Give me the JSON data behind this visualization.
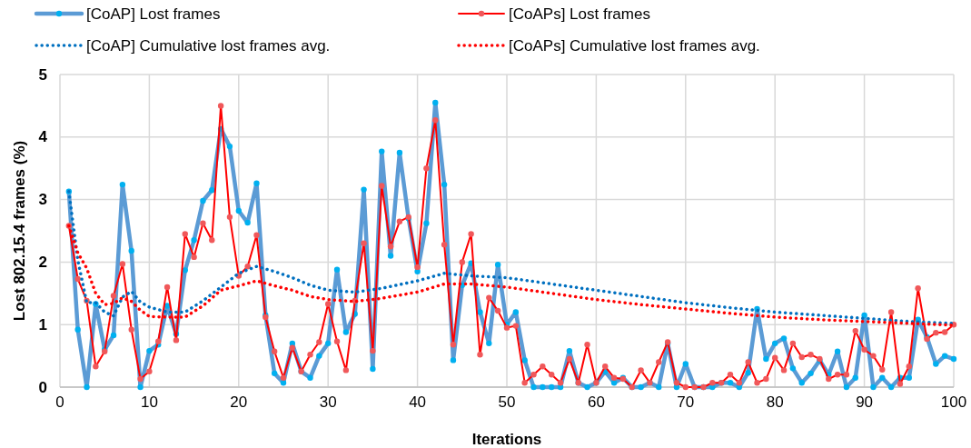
{
  "chart_data": {
    "type": "line",
    "xlabel": "Iterations",
    "ylabel": "Lost 802.15.4 frames (%)",
    "xlim": [
      0,
      100
    ],
    "ylim": [
      0,
      5
    ],
    "xticks": [
      0,
      10,
      20,
      30,
      40,
      50,
      60,
      70,
      80,
      90,
      100
    ],
    "yticks": [
      0,
      1,
      2,
      3,
      4,
      5
    ],
    "grid": true,
    "legend": "top",
    "series": [
      {
        "name": "[CoAP] Lost frames",
        "color": "#5b9bd5",
        "marker": "circle",
        "line_style": "solid",
        "x": [
          1,
          2,
          3,
          4,
          5,
          6,
          7,
          8,
          9,
          10,
          11,
          12,
          13,
          14,
          15,
          16,
          17,
          18,
          19,
          20,
          21,
          22,
          23,
          24,
          25,
          26,
          27,
          28,
          29,
          30,
          31,
          32,
          33,
          34,
          35,
          36,
          37,
          38,
          39,
          40,
          41,
          42,
          43,
          44,
          45,
          46,
          47,
          48,
          49,
          50,
          51,
          52,
          53,
          54,
          55,
          56,
          57,
          58,
          59,
          60,
          61,
          62,
          63,
          64,
          65,
          66,
          67,
          68,
          69,
          70,
          71,
          72,
          73,
          74,
          75,
          76,
          77,
          78,
          79,
          80,
          81,
          82,
          83,
          84,
          85,
          86,
          87,
          88,
          89,
          90,
          91,
          92,
          93,
          94,
          95,
          96,
          97,
          98,
          99,
          100
        ],
        "values": [
          3.13,
          0.92,
          0,
          1.33,
          0.6,
          0.83,
          3.24,
          2.18,
          0,
          0.58,
          0.68,
          1.3,
          0.85,
          1.87,
          2.35,
          2.98,
          3.15,
          4.13,
          3.85,
          2.82,
          2.63,
          3.26,
          1.15,
          0.22,
          0.07,
          0.7,
          0.25,
          0.15,
          0.5,
          0.7,
          1.88,
          0.88,
          1.17,
          3.16,
          0.29,
          3.77,
          2.1,
          3.75,
          2.7,
          1.85,
          2.62,
          4.55,
          3.24,
          0.43,
          1.63,
          1.98,
          1.2,
          0.7,
          1.96,
          1,
          1.2,
          0.43,
          0,
          0,
          0,
          0,
          0.58,
          0.07,
          0,
          0.07,
          0.25,
          0.07,
          0.15,
          0,
          0,
          0.07,
          0,
          0.7,
          0,
          0.37,
          0,
          0,
          0,
          0.07,
          0.07,
          0,
          0.23,
          1.25,
          0.45,
          0.7,
          0.78,
          0.3,
          0.07,
          0.22,
          0.43,
          0.2,
          0.57,
          0,
          0.15,
          1.15,
          0,
          0.15,
          0,
          0.15,
          0.15,
          1.08,
          0.8,
          0.37,
          0.5,
          0.45
        ]
      },
      {
        "name": "[CoAPs] Lost frames",
        "color": "#ff0000",
        "marker": "circle",
        "line_style": "solid",
        "x": [
          1,
          2,
          3,
          4,
          5,
          6,
          7,
          8,
          9,
          10,
          11,
          12,
          13,
          14,
          15,
          16,
          17,
          18,
          19,
          20,
          21,
          22,
          23,
          24,
          25,
          26,
          27,
          28,
          29,
          30,
          31,
          32,
          33,
          34,
          35,
          36,
          37,
          38,
          39,
          40,
          41,
          42,
          43,
          44,
          45,
          46,
          47,
          48,
          49,
          50,
          51,
          52,
          53,
          54,
          55,
          56,
          57,
          58,
          59,
          60,
          61,
          62,
          63,
          64,
          65,
          66,
          67,
          68,
          69,
          70,
          71,
          72,
          73,
          74,
          75,
          76,
          77,
          78,
          79,
          80,
          81,
          82,
          83,
          84,
          85,
          86,
          87,
          88,
          89,
          90,
          91,
          92,
          93,
          94,
          95,
          96,
          97,
          98,
          99,
          100
        ],
        "values": [
          2.58,
          1.73,
          1.38,
          0.33,
          0.57,
          1.46,
          1.97,
          0.92,
          0.13,
          0.25,
          0.73,
          1.6,
          0.75,
          2.45,
          2.08,
          2.62,
          2.35,
          4.5,
          2.72,
          1.78,
          1.93,
          2.43,
          1.12,
          0.57,
          0.15,
          0.63,
          0.25,
          0.52,
          0.72,
          1.33,
          0.73,
          0.27,
          1.38,
          2.3,
          0.58,
          3.22,
          2.25,
          2.65,
          2.72,
          1.92,
          3.5,
          4.27,
          2.28,
          0.68,
          2,
          2.45,
          0.52,
          1.43,
          1.22,
          0.95,
          0.98,
          0.07,
          0.2,
          0.33,
          0.2,
          0.07,
          0.45,
          0.07,
          0.68,
          0.07,
          0.33,
          0.15,
          0.13,
          0,
          0.27,
          0.07,
          0.4,
          0.72,
          0.07,
          0,
          0,
          0,
          0.07,
          0.07,
          0.2,
          0.07,
          0.4,
          0.07,
          0.13,
          0.47,
          0.27,
          0.7,
          0.48,
          0.52,
          0.45,
          0.13,
          0.2,
          0.2,
          0.9,
          0.6,
          0.5,
          0.28,
          1.2,
          0.05,
          0.33,
          1.58,
          0.77,
          0.87,
          0.88,
          1
        ]
      },
      {
        "name": "[CoAP] Cumulative lost frames avg.",
        "color": "#0070c0",
        "marker": "none",
        "line_style": "dotted",
        "x": [
          1,
          2,
          3,
          4,
          5,
          6,
          7,
          8,
          9,
          10,
          12,
          14,
          16,
          18,
          20,
          22,
          24,
          26,
          28,
          30,
          33,
          36,
          40,
          43,
          46,
          50,
          55,
          60,
          65,
          70,
          75,
          80,
          85,
          90,
          95,
          100
        ],
        "values": [
          3.13,
          2.03,
          1.35,
          1.35,
          1.2,
          1.14,
          1.44,
          1.53,
          1.36,
          1.28,
          1.2,
          1.2,
          1.38,
          1.6,
          1.82,
          1.93,
          1.85,
          1.75,
          1.63,
          1.55,
          1.52,
          1.58,
          1.7,
          1.82,
          1.78,
          1.75,
          1.65,
          1.55,
          1.45,
          1.35,
          1.27,
          1.2,
          1.15,
          1.1,
          1.05,
          1.02
        ]
      },
      {
        "name": "[CoAPs] Cumulative lost frames avg.",
        "color": "#ff0000",
        "marker": "none",
        "line_style": "dotted",
        "x": [
          1,
          2,
          3,
          4,
          5,
          6,
          7,
          8,
          9,
          10,
          12,
          14,
          16,
          18,
          20,
          22,
          24,
          26,
          28,
          30,
          33,
          36,
          40,
          43,
          46,
          50,
          55,
          60,
          65,
          70,
          75,
          80,
          85,
          90,
          95,
          100
        ],
        "values": [
          2.58,
          2.15,
          1.9,
          1.5,
          1.32,
          1.34,
          1.43,
          1.37,
          1.23,
          1.13,
          1.12,
          1.12,
          1.3,
          1.55,
          1.62,
          1.7,
          1.62,
          1.55,
          1.45,
          1.4,
          1.37,
          1.42,
          1.52,
          1.65,
          1.65,
          1.6,
          1.5,
          1.4,
          1.32,
          1.25,
          1.18,
          1.12,
          1.08,
          1.05,
          1.02,
          0.99
        ]
      }
    ]
  }
}
